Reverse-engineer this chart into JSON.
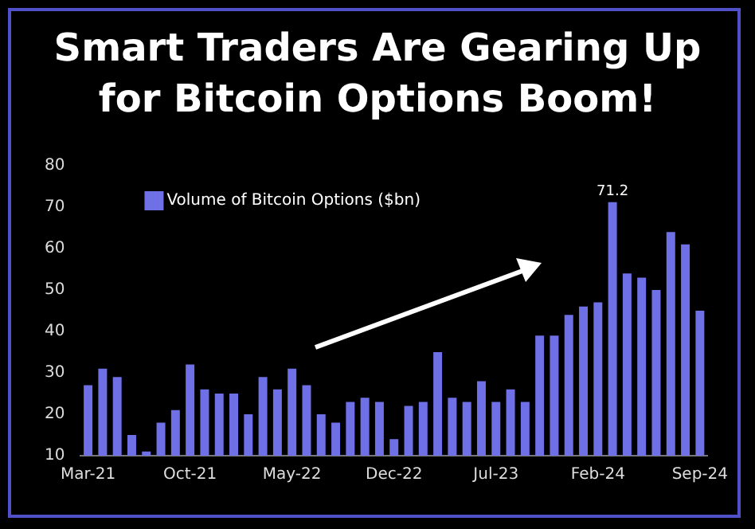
{
  "chart_data": {
    "type": "bar",
    "title": "Smart Traders Are Gearing Up\nfor Bitcoin Options Boom!",
    "categories": [
      "Mar-21",
      null,
      null,
      null,
      null,
      null,
      null,
      "Oct-21",
      null,
      null,
      null,
      null,
      null,
      null,
      "May-22",
      null,
      null,
      null,
      null,
      null,
      null,
      "Dec-22",
      null,
      null,
      null,
      null,
      null,
      null,
      "Jul-23",
      null,
      null,
      null,
      null,
      null,
      null,
      "Feb-24",
      null,
      null,
      null,
      null,
      null,
      null,
      "Sep-24"
    ],
    "series": [
      {
        "name": "Volume of Bitcoin Options ($bn)",
        "color": "#6f6fe6",
        "values": [
          27,
          31,
          29,
          15,
          11,
          18,
          21,
          32,
          26,
          25,
          25,
          20,
          29,
          26,
          31,
          27,
          20,
          18,
          23,
          24,
          23,
          14,
          22,
          23,
          35,
          24,
          23,
          28,
          23,
          26,
          23,
          39,
          39,
          44,
          46,
          47,
          71.2,
          54,
          53,
          50,
          64,
          61,
          45
        ],
        "value_labels": [
          null,
          null,
          null,
          null,
          null,
          null,
          null,
          null,
          null,
          null,
          null,
          null,
          null,
          null,
          null,
          null,
          null,
          null,
          null,
          null,
          null,
          null,
          null,
          null,
          null,
          null,
          null,
          null,
          null,
          null,
          null,
          null,
          null,
          null,
          null,
          null,
          "71.2",
          null,
          null,
          null,
          null,
          null,
          null
        ]
      }
    ],
    "ylim": [
      10,
      80
    ],
    "yticks": [
      10,
      20,
      30,
      40,
      50,
      60,
      70,
      80
    ],
    "legend": "top left"
  }
}
